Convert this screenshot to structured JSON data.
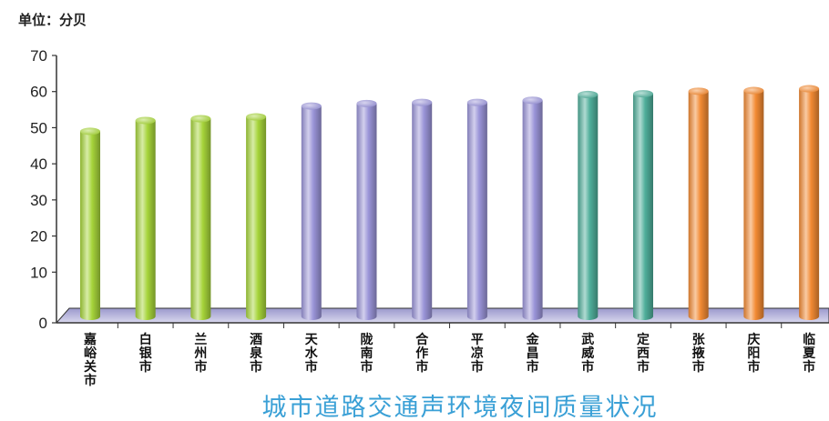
{
  "chart_data": {
    "type": "bar",
    "title": "城市道路交通声环境夜间质量状况",
    "unit_label": "单位：分贝",
    "xlabel": "",
    "ylabel": "",
    "ylim": [
      0,
      70
    ],
    "yticks": [
      0,
      10,
      20,
      30,
      40,
      50,
      60,
      70
    ],
    "grid": false,
    "categories": [
      "嘉峪关市",
      "白银市",
      "兰州市",
      "酒泉市",
      "天水市",
      "陇南市",
      "合作市",
      "平凉市",
      "金昌市",
      "武威市",
      "定西市",
      "张掖市",
      "庆阳市",
      "临夏市"
    ],
    "values": [
      49.0,
      52.0,
      52.5,
      53.0,
      56.0,
      56.7,
      57.0,
      57.0,
      57.6,
      59.2,
      59.4,
      60.1,
      60.3,
      60.8
    ],
    "colors": {
      "green": "#a6d43a",
      "purple": "#9a94d8",
      "teal": "#4fae9a",
      "orange": "#f28a33"
    },
    "bar_color_groups": [
      "green",
      "green",
      "green",
      "green",
      "purple",
      "purple",
      "purple",
      "purple",
      "purple",
      "teal",
      "teal",
      "orange",
      "orange",
      "orange"
    ]
  }
}
